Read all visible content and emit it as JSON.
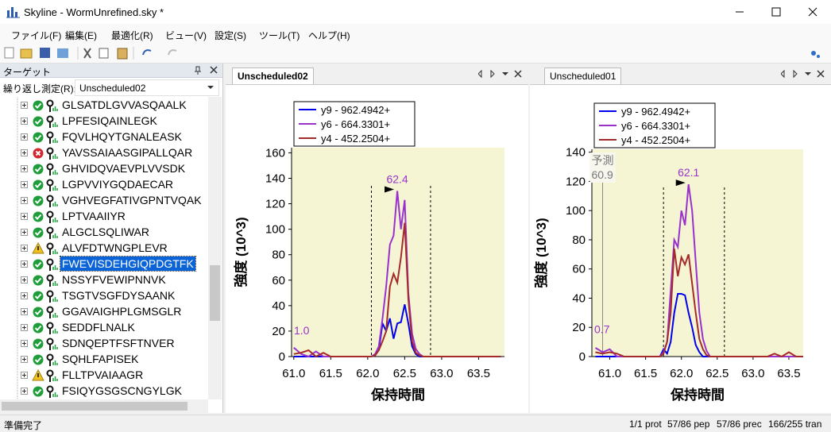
{
  "window": {
    "title": "Skyline - WormUnrefined.sky *"
  },
  "menu": [
    "ファイル(F)",
    "編集(E)",
    "最適化(R)",
    "ビュー(V)",
    "設定(S)",
    "ツール(T)",
    "ヘルプ(H)"
  ],
  "targets_panel": {
    "title": "ターゲット",
    "replicate_label": "繰り返し測定(R):",
    "replicate": "Unscheduled02",
    "selected": 10,
    "peptides": [
      {
        "text": "GLSATDLGVVASQAALK",
        "status": "ok"
      },
      {
        "text": "LPFESIQAINLEGK",
        "status": "ok"
      },
      {
        "text": "FQVLHQYTGNALEASK",
        "status": "ok"
      },
      {
        "text": "YAVSSAIAASGIPALLQAR",
        "status": "error"
      },
      {
        "text": "GHVIDQVAEVPLVVSDK",
        "status": "ok"
      },
      {
        "text": "LGPVVIYGQDAECAR",
        "status": "ok"
      },
      {
        "text": "VGHVEGFATIVGPNTVQAK",
        "status": "ok"
      },
      {
        "text": "LPTVAAIIYR",
        "status": "ok"
      },
      {
        "text": "ALGCLSQLIWAR",
        "status": "ok"
      },
      {
        "text": "ALVFDTWNGPLEVR",
        "status": "warning"
      },
      {
        "text": "FWEVISDEHGIQPDGTFK",
        "status": "ok"
      },
      {
        "text": "NSSYFVEWIPNNVK",
        "status": "ok"
      },
      {
        "text": "TSGTVSGFDYSAANK",
        "status": "ok"
      },
      {
        "text": "GGAVAIGHPLGMSGLR",
        "status": "ok"
      },
      {
        "text": "SEDDFLNALK",
        "status": "ok"
      },
      {
        "text": "SDNQEPTFSFTNVER",
        "status": "ok"
      },
      {
        "text": "SQHLFAPISEK",
        "status": "ok"
      },
      {
        "text": "FLLTPVAIAAGR",
        "status": "warning"
      },
      {
        "text": "FSIQYGSGSCNGYLGK",
        "status": "ok"
      }
    ]
  },
  "tabs": [
    "Unscheduled02",
    "Unscheduled01"
  ],
  "status_bar": {
    "left": "準備完了",
    "items": [
      "1/1 prot",
      "57/86 pep",
      "57/86 prec",
      "166/255 tran"
    ]
  },
  "chart_data": [
    {
      "type": "line",
      "xlabel": "保持時間",
      "ylabel": "強度 (10^3)",
      "legend": "upper left",
      "background": "#f5f5d3",
      "xlim": [
        60.97,
        63.85
      ],
      "ylim": [
        0,
        164
      ],
      "xticks": [
        {
          "value": 61,
          "label": "61.0"
        },
        61.5,
        {
          "value": 62,
          "label": "62.0"
        },
        62.5,
        {
          "value": 63,
          "label": "63.0"
        },
        63.5
      ],
      "yticks": [
        0,
        20,
        40,
        60,
        80,
        100,
        120,
        140,
        160
      ],
      "peak_label": 62.4,
      "boundaries": [
        62.05,
        62.85
      ],
      "ratio_label": "1.0",
      "x": [
        61.0,
        61.1,
        61.2,
        61.3,
        61.4,
        61.5,
        61.6,
        61.7,
        61.8,
        61.9,
        62.0,
        62.05,
        62.1,
        62.15,
        62.2,
        62.25,
        62.3,
        62.35,
        62.4,
        62.45,
        62.5,
        62.55,
        62.6,
        62.65,
        62.7,
        62.75,
        62.8,
        62.85,
        62.9,
        63.0,
        63.1,
        63.2,
        63.3,
        63.4,
        63.5,
        63.6,
        63.7,
        63.8
      ],
      "series": [
        {
          "name": "y9 - 962.4942+",
          "color": "#0000ee",
          "values": [
            0,
            0,
            0,
            0,
            0,
            0,
            0,
            0,
            0,
            0,
            0,
            0,
            1,
            5,
            26,
            20,
            30,
            14,
            26,
            27,
            41,
            26,
            8,
            2,
            0,
            0,
            0,
            0,
            0,
            0,
            0,
            0,
            0,
            0,
            0,
            0,
            0,
            0
          ]
        },
        {
          "name": "y6 - 664.3301+",
          "color": "#9932cc",
          "values": [
            7,
            2,
            0,
            4,
            0,
            0,
            0,
            0,
            0,
            0,
            0,
            0,
            2,
            8,
            30,
            55,
            88,
            95,
            130,
            100,
            123,
            50,
            18,
            6,
            2,
            0,
            0,
            0,
            0,
            0,
            0,
            0,
            0,
            0,
            0,
            0,
            0,
            0
          ]
        },
        {
          "name": "y4 - 452.2504+",
          "color": "#a52a2a",
          "values": [
            2,
            3,
            5,
            0,
            3,
            0,
            0,
            0,
            0,
            0,
            0,
            0,
            1,
            5,
            12,
            20,
            55,
            65,
            58,
            78,
            105,
            45,
            12,
            3,
            1,
            0,
            0,
            0,
            0,
            0,
            0,
            0,
            0,
            0,
            0,
            0,
            0,
            0
          ]
        }
      ]
    },
    {
      "type": "line",
      "xlabel": "保持時間",
      "ylabel": "強度 (10^3)",
      "legend": "upper left",
      "background": "#f5f5d3",
      "xlim": [
        60.75,
        63.7
      ],
      "ylim": [
        0,
        142
      ],
      "xticks": [
        {
          "value": 61,
          "label": "61.0"
        },
        61.5,
        {
          "value": 62,
          "label": "62.0"
        },
        62.5,
        {
          "value": 63,
          "label": "63.0"
        },
        63.5
      ],
      "yticks": [
        0,
        20,
        40,
        60,
        80,
        100,
        120,
        140
      ],
      "peak_label": 62.1,
      "boundaries": [
        61.75,
        62.6
      ],
      "ratio_label": "0.7",
      "predicted_label": "予測",
      "predicted_rt": 60.9,
      "x": [
        60.8,
        60.9,
        61.0,
        61.1,
        61.2,
        61.3,
        61.4,
        61.5,
        61.6,
        61.7,
        61.75,
        61.8,
        61.85,
        61.9,
        61.95,
        62.0,
        62.05,
        62.1,
        62.15,
        62.2,
        62.25,
        62.3,
        62.35,
        62.4,
        62.45,
        62.5,
        62.55,
        62.6,
        62.7,
        62.8,
        62.9,
        63.0,
        63.1,
        63.2,
        63.3,
        63.4,
        63.5,
        63.6,
        63.7
      ],
      "series": [
        {
          "name": "y9 - 962.4942+",
          "color": "#0000ee",
          "values": [
            0,
            0,
            0,
            0,
            0,
            0,
            0,
            0,
            0,
            0,
            5,
            2,
            10,
            30,
            43,
            43,
            42,
            30,
            20,
            8,
            3,
            0,
            0,
            0,
            0,
            0,
            0,
            0,
            0,
            0,
            0,
            0,
            0,
            0,
            0,
            0,
            0,
            0,
            0
          ]
        },
        {
          "name": "y6 - 664.3301+",
          "color": "#9932cc",
          "values": [
            6,
            3,
            5,
            0,
            0,
            0,
            0,
            0,
            0,
            0,
            3,
            10,
            45,
            80,
            75,
            100,
            90,
            118,
            100,
            65,
            30,
            12,
            4,
            0,
            0,
            0,
            0,
            0,
            0,
            0,
            0,
            0,
            0,
            0,
            0,
            0,
            0,
            0,
            0
          ]
        },
        {
          "name": "y4 - 452.2504+",
          "color": "#a52a2a",
          "values": [
            3,
            2,
            3,
            2,
            0,
            0,
            0,
            0,
            0,
            0,
            2,
            10,
            30,
            74,
            55,
            68,
            63,
            70,
            50,
            30,
            12,
            5,
            1,
            0,
            0,
            0,
            0,
            0,
            0,
            0,
            0,
            0,
            0,
            0,
            2,
            0,
            3,
            0,
            0
          ]
        }
      ]
    }
  ]
}
